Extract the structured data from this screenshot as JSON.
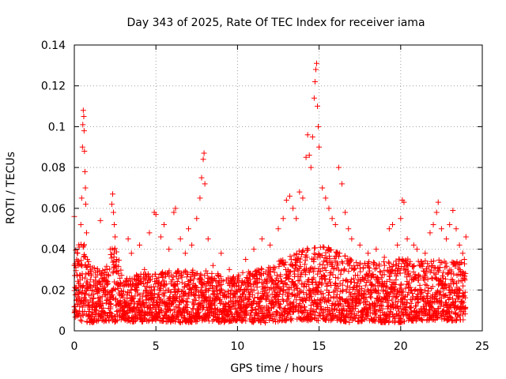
{
  "chart_data": {
    "type": "scatter",
    "title": "Day 343 of 2025, Rate Of TEC Index for receiver iama",
    "xlabel": "GPS time / hours",
    "ylabel": "ROTI / TECUs",
    "xlim": [
      0,
      25
    ],
    "ylim": [
      0,
      0.14
    ],
    "xticks": [
      0,
      5,
      10,
      15,
      20,
      25
    ],
    "xtick_labels": [
      "0",
      "5",
      "10",
      "15",
      "20",
      "25"
    ],
    "yticks": [
      0,
      0.02,
      0.04,
      0.06,
      0.08,
      0.1,
      0.12,
      0.14
    ],
    "ytick_labels": [
      "0",
      "0.02",
      "0.04",
      "0.06",
      "0.08",
      "0.1",
      "0.12",
      "0.14"
    ],
    "grid": true,
    "marker": "+",
    "series": [
      {
        "name": "ROTI",
        "color": "#ff0000",
        "points": [
          [
            0.0,
            0.056
          ],
          [
            0.05,
            0.012
          ],
          [
            0.1,
            0.031
          ],
          [
            0.15,
            0.008
          ],
          [
            0.2,
            0.038
          ],
          [
            0.25,
            0.019
          ],
          [
            0.3,
            0.041
          ],
          [
            0.35,
            0.025
          ],
          [
            0.4,
            0.052
          ],
          [
            0.45,
            0.065
          ],
          [
            0.5,
            0.09
          ],
          [
            0.52,
            0.101
          ],
          [
            0.55,
            0.108
          ],
          [
            0.58,
            0.105
          ],
          [
            0.6,
            0.098
          ],
          [
            0.62,
            0.088
          ],
          [
            0.65,
            0.078
          ],
          [
            0.68,
            0.07
          ],
          [
            0.7,
            0.062
          ],
          [
            0.75,
            0.048
          ],
          [
            0.8,
            0.035
          ],
          [
            0.9,
            0.028
          ],
          [
            1.0,
            0.022
          ],
          [
            1.2,
            0.018
          ],
          [
            1.5,
            0.024
          ],
          [
            1.6,
            0.054
          ],
          [
            1.8,
            0.02
          ],
          [
            2.0,
            0.03
          ],
          [
            2.2,
            0.04
          ],
          [
            2.3,
            0.062
          ],
          [
            2.35,
            0.067
          ],
          [
            2.4,
            0.058
          ],
          [
            2.45,
            0.052
          ],
          [
            2.5,
            0.046
          ],
          [
            2.6,
            0.035
          ],
          [
            2.7,
            0.028
          ],
          [
            3.0,
            0.022
          ],
          [
            3.3,
            0.045
          ],
          [
            3.5,
            0.038
          ],
          [
            3.8,
            0.025
          ],
          [
            4.0,
            0.042
          ],
          [
            4.3,
            0.03
          ],
          [
            4.6,
            0.048
          ],
          [
            4.9,
            0.058
          ],
          [
            5.0,
            0.057
          ],
          [
            5.3,
            0.046
          ],
          [
            5.5,
            0.052
          ],
          [
            5.8,
            0.04
          ],
          [
            6.1,
            0.058
          ],
          [
            6.2,
            0.06
          ],
          [
            6.5,
            0.045
          ],
          [
            6.8,
            0.038
          ],
          [
            7.0,
            0.05
          ],
          [
            7.2,
            0.042
          ],
          [
            7.5,
            0.055
          ],
          [
            7.7,
            0.065
          ],
          [
            7.8,
            0.075
          ],
          [
            7.9,
            0.084
          ],
          [
            7.95,
            0.087
          ],
          [
            8.0,
            0.072
          ],
          [
            8.2,
            0.045
          ],
          [
            8.5,
            0.032
          ],
          [
            8.8,
            0.028
          ],
          [
            9.0,
            0.038
          ],
          [
            9.5,
            0.03
          ],
          [
            10.0,
            0.025
          ],
          [
            10.5,
            0.035
          ],
          [
            11.0,
            0.04
          ],
          [
            11.5,
            0.045
          ],
          [
            12.0,
            0.042
          ],
          [
            12.5,
            0.05
          ],
          [
            12.8,
            0.055
          ],
          [
            13.0,
            0.064
          ],
          [
            13.2,
            0.066
          ],
          [
            13.4,
            0.06
          ],
          [
            13.6,
            0.055
          ],
          [
            13.8,
            0.068
          ],
          [
            14.0,
            0.065
          ],
          [
            14.2,
            0.085
          ],
          [
            14.3,
            0.096
          ],
          [
            14.4,
            0.086
          ],
          [
            14.5,
            0.08
          ],
          [
            14.6,
            0.095
          ],
          [
            14.7,
            0.114
          ],
          [
            14.75,
            0.122
          ],
          [
            14.8,
            0.128
          ],
          [
            14.85,
            0.131
          ],
          [
            14.9,
            0.11
          ],
          [
            14.95,
            0.1
          ],
          [
            15.0,
            0.09
          ],
          [
            15.2,
            0.07
          ],
          [
            15.4,
            0.065
          ],
          [
            15.6,
            0.06
          ],
          [
            15.8,
            0.055
          ],
          [
            16.0,
            0.052
          ],
          [
            16.2,
            0.08
          ],
          [
            16.4,
            0.072
          ],
          [
            16.6,
            0.058
          ],
          [
            16.8,
            0.05
          ],
          [
            17.0,
            0.045
          ],
          [
            17.5,
            0.042
          ],
          [
            18.0,
            0.038
          ],
          [
            18.5,
            0.04
          ],
          [
            19.0,
            0.036
          ],
          [
            19.3,
            0.05
          ],
          [
            19.5,
            0.052
          ],
          [
            19.8,
            0.042
          ],
          [
            20.0,
            0.055
          ],
          [
            20.1,
            0.064
          ],
          [
            20.2,
            0.063
          ],
          [
            20.4,
            0.045
          ],
          [
            20.8,
            0.042
          ],
          [
            21.0,
            0.04
          ],
          [
            21.5,
            0.038
          ],
          [
            21.8,
            0.048
          ],
          [
            22.0,
            0.052
          ],
          [
            22.2,
            0.058
          ],
          [
            22.3,
            0.063
          ],
          [
            22.5,
            0.05
          ],
          [
            22.8,
            0.045
          ],
          [
            23.0,
            0.052
          ],
          [
            23.2,
            0.059
          ],
          [
            23.4,
            0.05
          ],
          [
            23.6,
            0.042
          ],
          [
            23.8,
            0.038
          ],
          [
            23.9,
            0.035
          ],
          [
            24.0,
            0.046
          ]
        ]
      }
    ],
    "band_estimate": [
      [
        0.0,
        0.006,
        0.04
      ],
      [
        0.5,
        0.004,
        0.045
      ],
      [
        1.0,
        0.004,
        0.032
      ],
      [
        1.5,
        0.004,
        0.03
      ],
      [
        2.0,
        0.005,
        0.033
      ],
      [
        2.5,
        0.004,
        0.045
      ],
      [
        3.0,
        0.005,
        0.025
      ],
      [
        4.0,
        0.004,
        0.028
      ],
      [
        5.0,
        0.005,
        0.028
      ],
      [
        6.0,
        0.004,
        0.03
      ],
      [
        7.0,
        0.004,
        0.03
      ],
      [
        8.0,
        0.005,
        0.03
      ],
      [
        9.0,
        0.004,
        0.027
      ],
      [
        10.0,
        0.005,
        0.028
      ],
      [
        11.0,
        0.004,
        0.03
      ],
      [
        12.0,
        0.004,
        0.032
      ],
      [
        13.0,
        0.005,
        0.036
      ],
      [
        14.0,
        0.005,
        0.04
      ],
      [
        15.0,
        0.005,
        0.042
      ],
      [
        16.0,
        0.005,
        0.04
      ],
      [
        17.0,
        0.004,
        0.035
      ],
      [
        18.0,
        0.005,
        0.034
      ],
      [
        19.0,
        0.004,
        0.034
      ],
      [
        20.0,
        0.004,
        0.036
      ],
      [
        21.0,
        0.005,
        0.034
      ],
      [
        22.0,
        0.005,
        0.035
      ],
      [
        23.0,
        0.005,
        0.035
      ],
      [
        24.0,
        0.005,
        0.033
      ]
    ]
  }
}
